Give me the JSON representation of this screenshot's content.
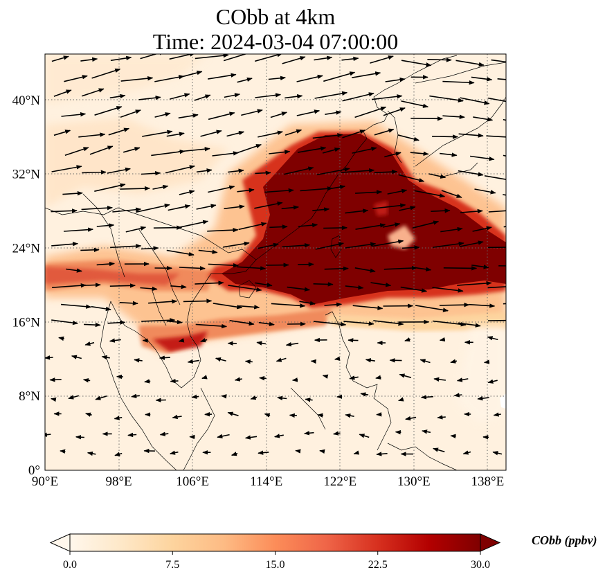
{
  "title": {
    "line1": "CObb at 4km",
    "line2": "Time: 2024-03-04 07:00:00"
  },
  "map": {
    "projection": "PlateCarree",
    "extent": {
      "lon_min": 90,
      "lon_max": 140,
      "lat_min": 0,
      "lat_max": 45
    },
    "gridlines": "dotted",
    "lon_ticks": [
      {
        "value": 90,
        "label": "90°E"
      },
      {
        "value": 98,
        "label": "98°E"
      },
      {
        "value": 106,
        "label": "106°E"
      },
      {
        "value": 114,
        "label": "114°E"
      },
      {
        "value": 122,
        "label": "122°E"
      },
      {
        "value": 130,
        "label": "130°E"
      },
      {
        "value": 138,
        "label": "138°E"
      }
    ],
    "lat_ticks": [
      {
        "value": 0,
        "label": "0°"
      },
      {
        "value": 8,
        "label": "8°N"
      },
      {
        "value": 16,
        "label": "16°N"
      },
      {
        "value": 24,
        "label": "24°N"
      },
      {
        "value": 32,
        "label": "32°N"
      },
      {
        "value": 40,
        "label": "40°N"
      }
    ],
    "field": "CObb concentration (filled contours)",
    "vectors": "wind arrows, predominantly westerly",
    "coastlines": true
  },
  "colorbar": {
    "label": "CObb (ppbv)",
    "min": 0.0,
    "max": 30.0,
    "extend": "both",
    "colormap": "OrRd",
    "colors": [
      "#fff7ec",
      "#fee8c8",
      "#fdd49e",
      "#fdbb84",
      "#fc8d59",
      "#ef6548",
      "#d7301f",
      "#b30000",
      "#7f0000"
    ],
    "ticks": [
      {
        "value": 0.0,
        "label": "0.0"
      },
      {
        "value": 7.5,
        "label": "7.5"
      },
      {
        "value": 15.0,
        "label": "15.0"
      },
      {
        "value": 22.5,
        "label": "22.5"
      },
      {
        "value": 30.0,
        "label": "30.0"
      }
    ]
  }
}
